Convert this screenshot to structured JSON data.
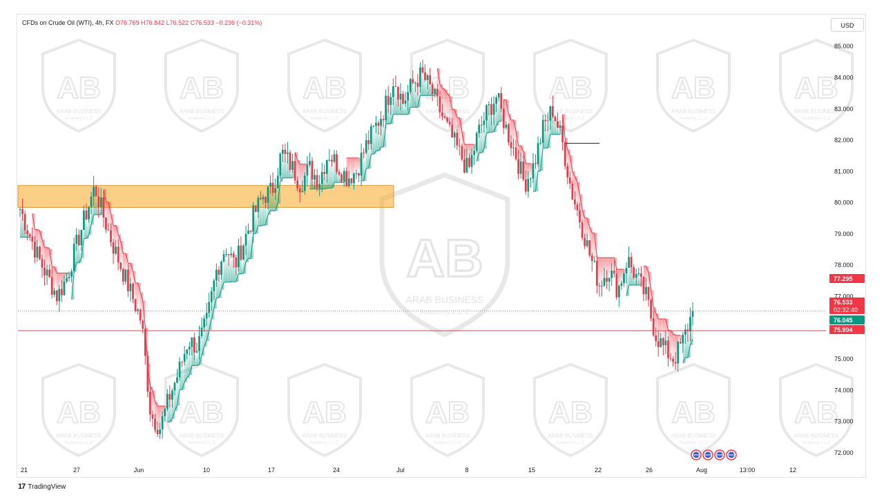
{
  "header": {
    "symbol": "CFDs on Crude Oil (WTI), 4h, FX",
    "open": "O76.769",
    "high": "H76.842",
    "low": "L76.522",
    "close": "C76.533",
    "change": "−0.236 (−0.31%)"
  },
  "currency_button": "USD",
  "footer": {
    "logo": "17",
    "brand": "TradingView"
  },
  "watermark": {
    "line1": "ARAB BUSINESS",
    "line2": "Academy L.L.C"
  },
  "colors": {
    "up": "#089981",
    "down": "#f23645",
    "zone": "#f7a823",
    "price_line": "#f23645",
    "grid_dot": "#787b86"
  },
  "chart_data": {
    "type": "candlestick",
    "interval": "4h",
    "y_ticks": [
      "85.000",
      "84.000",
      "83.000",
      "82.000",
      "81.000",
      "80.000",
      "79.000",
      "78.000",
      "77.000",
      "76.000",
      "75.000",
      "74.000",
      "73.000",
      "72.000"
    ],
    "y_range": [
      71.4,
      85.3
    ],
    "x_ticks": [
      "21",
      "27",
      "Jun",
      "10",
      "17",
      "24",
      "Jul",
      "8",
      "15",
      "22",
      "26",
      "Aug",
      "13:00",
      "12"
    ],
    "price_labels": [
      {
        "text": "77.295",
        "value": 77.295,
        "color": "#f23645"
      },
      {
        "text": "76.533",
        "value": 76.533,
        "color": "#f23645",
        "sub": "02:32:40"
      },
      {
        "text": "76.045",
        "value": 76.045,
        "color": "#089981"
      },
      {
        "text": "75.904",
        "value": 75.904,
        "color": "#f23645"
      }
    ],
    "current_price": 76.533,
    "horizontal_level": 75.904,
    "supply_zone": {
      "top": 80.55,
      "bottom": 79.85,
      "from_x_label": "21",
      "to_x_label": "Jul"
    },
    "price_path": [
      [
        "21",
        79.8
      ],
      [
        "",
        79.0
      ],
      [
        "",
        78.2
      ],
      [
        "",
        77.6
      ],
      [
        "",
        77.0
      ],
      [
        "27",
        77.6
      ],
      [
        "",
        78.6
      ],
      [
        "",
        79.6
      ],
      [
        "",
        80.5
      ],
      [
        "",
        79.5
      ],
      [
        "",
        78.6
      ],
      [
        "",
        77.8
      ],
      [
        "",
        77.0
      ],
      [
        "",
        76.2
      ],
      [
        "Jun",
        73.2
      ],
      [
        "",
        72.8
      ],
      [
        "",
        73.8
      ],
      [
        "",
        74.6
      ],
      [
        "",
        75.6
      ],
      [
        "",
        75.4
      ],
      [
        "10",
        76.2
      ],
      [
        "",
        77.8
      ],
      [
        "",
        78.6
      ],
      [
        "",
        78.0
      ],
      [
        "",
        78.8
      ],
      [
        "",
        79.6
      ],
      [
        "",
        80.2
      ],
      [
        "17",
        80.4
      ],
      [
        "",
        81.6
      ],
      [
        "",
        81.2
      ],
      [
        "",
        80.6
      ],
      [
        "",
        81.1
      ],
      [
        "24",
        80.7
      ],
      [
        "",
        81.6
      ],
      [
        "",
        81.2
      ],
      [
        "",
        80.8
      ],
      [
        "",
        81.0
      ],
      [
        "",
        81.8
      ],
      [
        "",
        82.4
      ],
      [
        "Jul",
        83.0
      ],
      [
        "",
        84.0
      ],
      [
        "",
        83.2
      ],
      [
        "",
        83.8
      ],
      [
        "",
        84.1
      ],
      [
        "",
        83.6
      ],
      [
        "8",
        82.9
      ],
      [
        "",
        82.2
      ],
      [
        "",
        81.6
      ],
      [
        "",
        81.0
      ],
      [
        "",
        82.2
      ],
      [
        "",
        82.9
      ],
      [
        "",
        83.4
      ],
      [
        "15",
        82.4
      ],
      [
        "",
        81.6
      ],
      [
        "",
        80.6
      ],
      [
        "",
        81.2
      ],
      [
        "",
        82.4
      ],
      [
        "",
        83.0
      ],
      [
        "",
        82.0
      ],
      [
        "22",
        80.4
      ],
      [
        "",
        79.4
      ],
      [
        "",
        78.3
      ],
      [
        "",
        77.4
      ],
      [
        "",
        77.9
      ],
      [
        "",
        77.2
      ],
      [
        "",
        78.2
      ],
      [
        "",
        77.6
      ],
      [
        "",
        77.0
      ],
      [
        "26",
        75.8
      ],
      [
        "",
        75.3
      ],
      [
        "",
        75.0
      ],
      [
        "",
        75.6
      ],
      [
        "",
        76.53
      ]
    ],
    "n_candles": 275,
    "events": [
      "US",
      "US",
      "US",
      "US"
    ]
  }
}
